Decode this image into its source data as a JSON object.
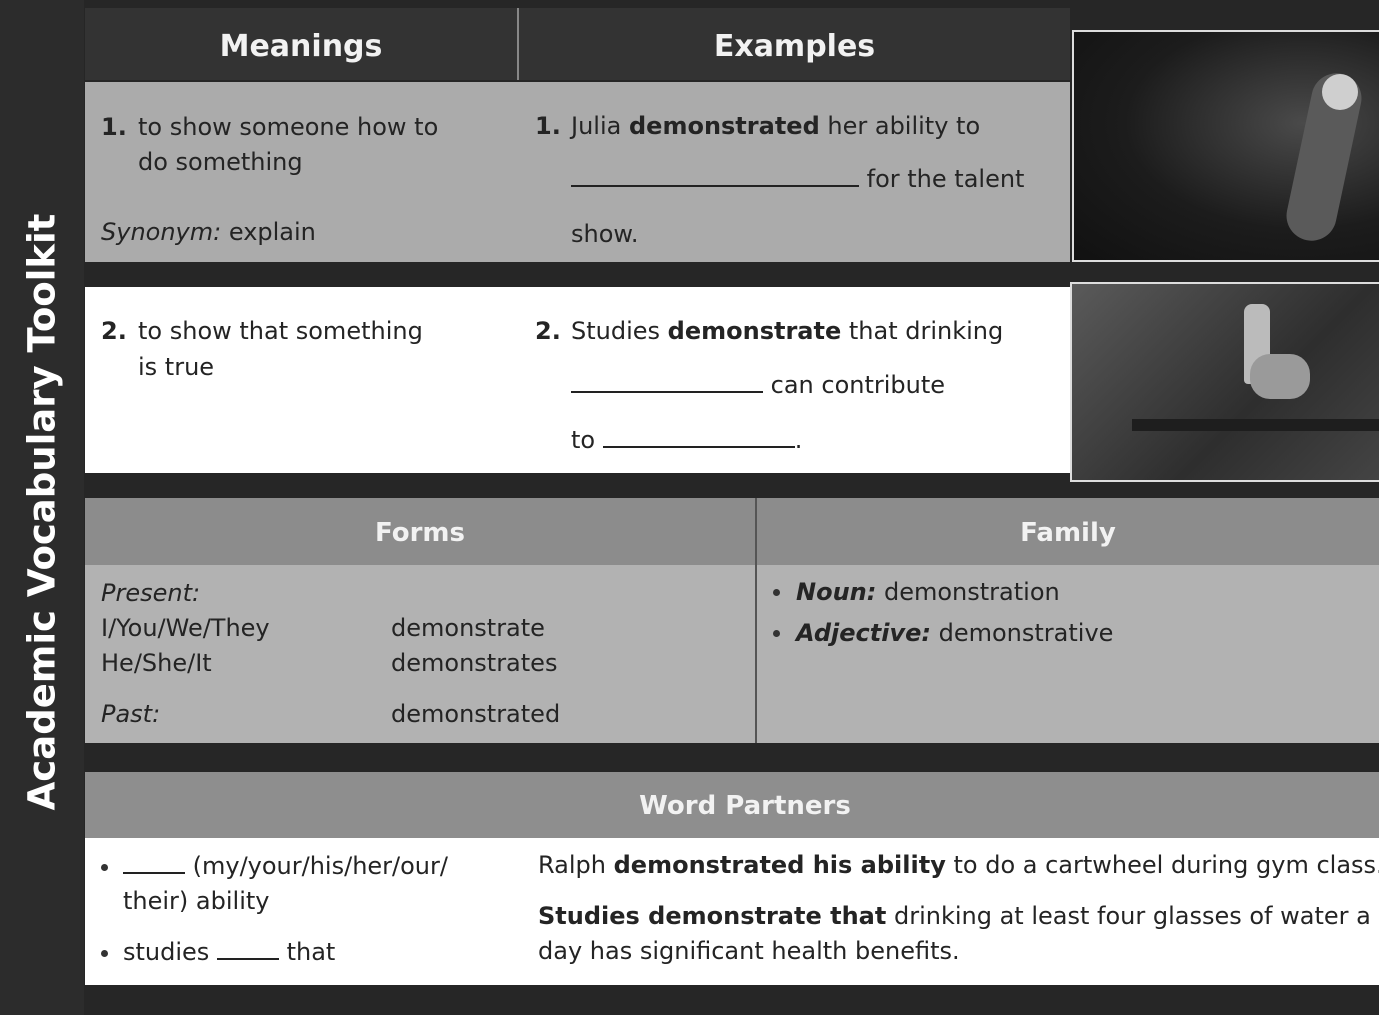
{
  "sidebar_title": "Academic Vocabulary Toolkit",
  "headers": [
    "Meanings",
    "Examples"
  ],
  "meanings": [
    {
      "number": "1.",
      "text": [
        "to show someone how to",
        "do something"
      ],
      "synonym_label": "Synonym:",
      "synonym": "explain"
    },
    {
      "number": "2.",
      "text": [
        "to show that something",
        "is true"
      ]
    }
  ],
  "examples": [
    {
      "number": "1.",
      "parts": [
        "Julia",
        "demonstrated",
        "her ability to",
        "for the talent",
        "show."
      ]
    },
    {
      "number": "2.",
      "parts": [
        "Studies",
        "demonstrate",
        "that drinking",
        "can contribute",
        "to",
        "."
      ]
    }
  ],
  "forms": {
    "title": "Forms",
    "tense_label": "Present:",
    "rows": [
      [
        "I/You/We/They",
        "demonstrate"
      ],
      [
        "He/She/It",
        "demonstrates"
      ]
    ],
    "past_label": "Past:",
    "past": "demonstrated"
  },
  "family": {
    "title": "Family",
    "items": [
      {
        "label": "Noun:",
        "word": "demonstration"
      },
      {
        "label": "Adjective:",
        "word": "demonstrative"
      }
    ]
  },
  "word_partners": {
    "title": "Word Partners",
    "items": [
      [
        "(my/your/his/her/our/",
        "their) ability"
      ],
      [
        "studies",
        "that"
      ]
    ],
    "sentences": [
      [
        "Ralph",
        "demonstrated his ability",
        "to do a cartwheel during gym class."
      ],
      [
        "Studies demonstrate that",
        "drinking at least four glasses of water a",
        "day has significant health benefits."
      ]
    ]
  }
}
